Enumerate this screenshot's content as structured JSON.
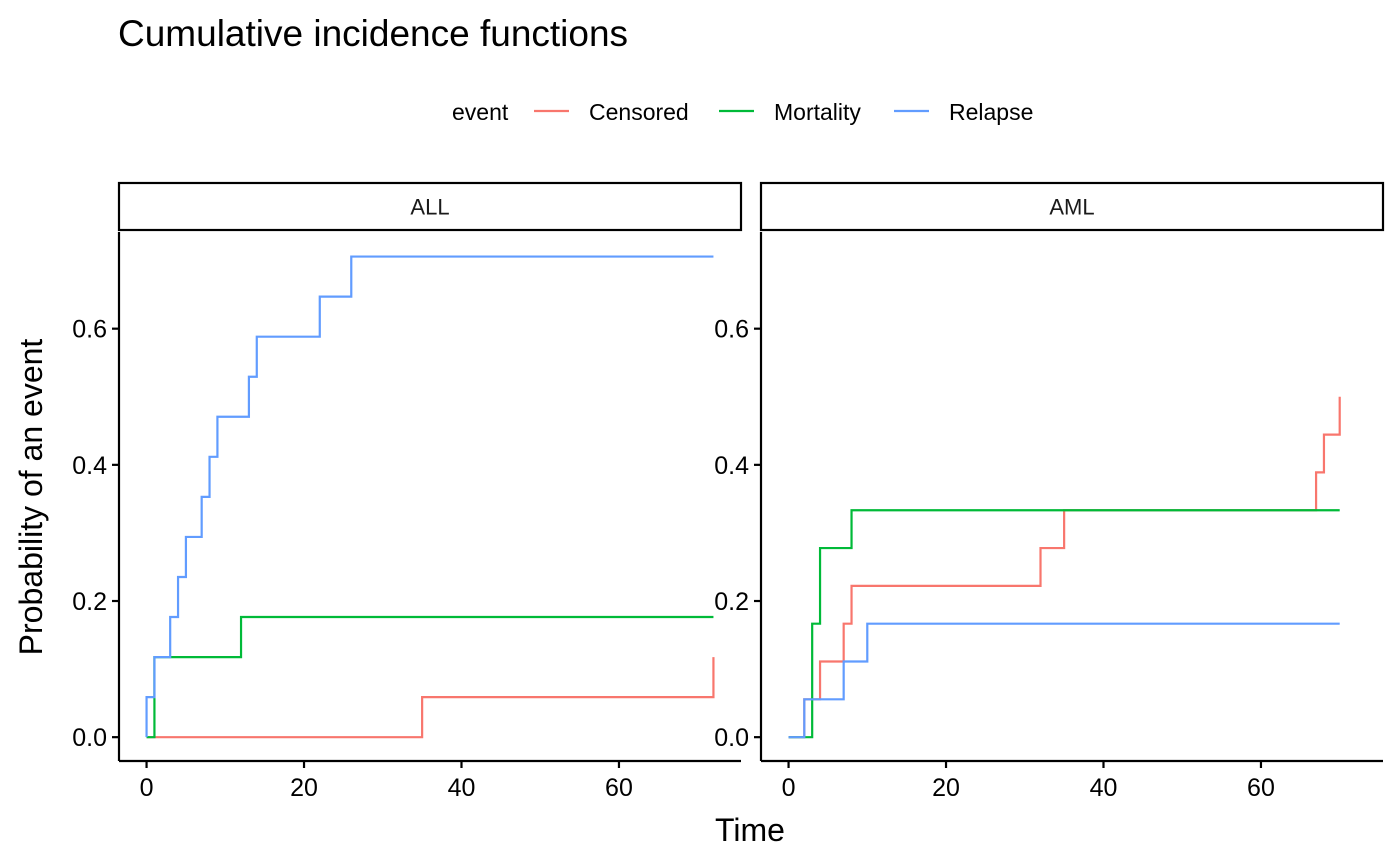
{
  "chart_data": {
    "type": "line",
    "step": true,
    "title": "Cumulative incidence functions",
    "xlabel": "Time",
    "ylabel": "Probability of an event",
    "xlim": [
      -3.5,
      75.5
    ],
    "ylim": [
      -0.035,
      0.742
    ],
    "x_ticks": [
      0,
      20,
      40,
      60
    ],
    "x_tick_labels": [
      "0",
      "20",
      "40",
      "60"
    ],
    "y_ticks": [
      0.0,
      0.2,
      0.4,
      0.6
    ],
    "y_tick_labels": [
      "0.0",
      "0.2",
      "0.4",
      "0.6"
    ],
    "grid": false,
    "legend": {
      "title": "event",
      "position": "top",
      "entries": [
        {
          "name": "Censored",
          "color": "#F8766D"
        },
        {
          "name": "Mortality",
          "color": "#00BA38"
        },
        {
          "name": "Relapse",
          "color": "#619CFF"
        }
      ]
    },
    "panels": [
      {
        "label": "ALL",
        "series": [
          {
            "name": "Censored",
            "color": "#F8766D",
            "x": [
              0,
              35,
              72,
              72
            ],
            "y": [
              0.0,
              0.0588,
              0.0588,
              0.1176
            ]
          },
          {
            "name": "Mortality",
            "color": "#00BA38",
            "x": [
              0,
              1,
              12,
              72
            ],
            "y": [
              0.0,
              0.1176,
              0.1765,
              0.1765
            ]
          },
          {
            "name": "Relapse",
            "color": "#619CFF",
            "x": [
              0,
              0,
              1,
              3,
              4,
              5,
              7,
              8,
              9,
              13,
              14,
              22,
              26,
              72
            ],
            "y": [
              0.0,
              0.0588,
              0.1176,
              0.1765,
              0.2353,
              0.2941,
              0.3529,
              0.4118,
              0.4706,
              0.5294,
              0.5882,
              0.6471,
              0.7059,
              0.7059
            ]
          }
        ]
      },
      {
        "label": "AML",
        "series": [
          {
            "name": "Censored",
            "color": "#F8766D",
            "x": [
              0,
              2,
              4,
              7,
              8,
              32,
              35,
              67,
              68,
              70,
              70
            ],
            "y": [
              0.0,
              0.0556,
              0.1111,
              0.1667,
              0.2222,
              0.2778,
              0.3333,
              0.3889,
              0.4444,
              0.4444,
              0.5
            ]
          },
          {
            "name": "Mortality",
            "color": "#00BA38",
            "x": [
              0,
              3,
              4,
              8,
              70
            ],
            "y": [
              0.0,
              0.1667,
              0.2778,
              0.3333,
              0.3333
            ]
          },
          {
            "name": "Relapse",
            "color": "#619CFF",
            "x": [
              0,
              2,
              7,
              10,
              70
            ],
            "y": [
              0.0,
              0.0556,
              0.1111,
              0.1667,
              0.1667
            ]
          }
        ]
      }
    ]
  }
}
